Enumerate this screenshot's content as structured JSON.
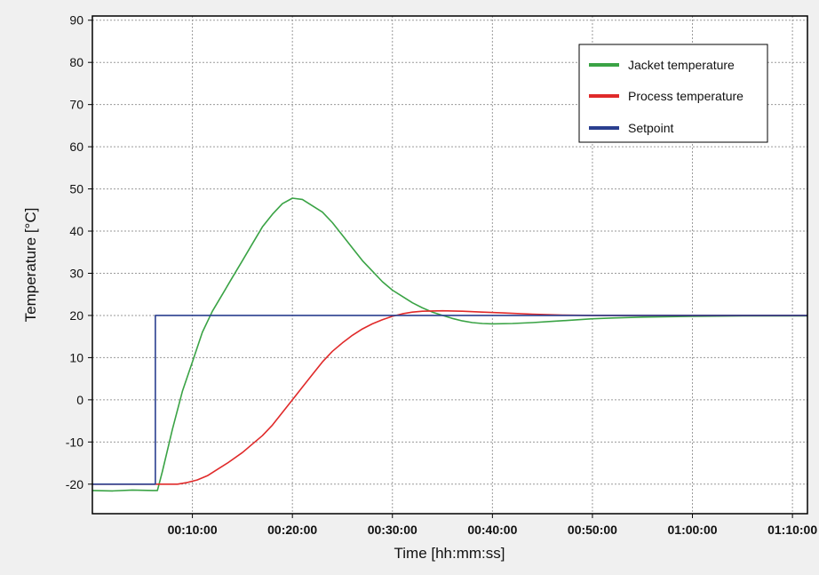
{
  "chart_data": {
    "type": "line",
    "title": "",
    "xlabel": "Time [hh:mm:ss]",
    "ylabel": "Temperature [°C]",
    "xlim_minutes": [
      0,
      71.5
    ],
    "ylim": [
      -27,
      91
    ],
    "x_ticks": [
      {
        "minutes": 10,
        "label": "00:10:00"
      },
      {
        "minutes": 20,
        "label": "00:20:00"
      },
      {
        "minutes": 30,
        "label": "00:30:00"
      },
      {
        "minutes": 40,
        "label": "00:40:00"
      },
      {
        "minutes": 50,
        "label": "00:50:00"
      },
      {
        "minutes": 60,
        "label": "01:00:00"
      },
      {
        "minutes": 70,
        "label": "01:10:00"
      }
    ],
    "y_ticks": [
      -20,
      -10,
      0,
      10,
      20,
      30,
      40,
      50,
      60,
      70,
      80,
      90
    ],
    "grid": true,
    "legend_position": "top-right",
    "series": [
      {
        "name": "Jacket temperature",
        "color": "#3aa345",
        "points": [
          [
            0,
            -21.5
          ],
          [
            2,
            -21.6
          ],
          [
            4,
            -21.4
          ],
          [
            6,
            -21.5
          ],
          [
            6.5,
            -21.5
          ],
          [
            7,
            -17
          ],
          [
            8,
            -7
          ],
          [
            9,
            2
          ],
          [
            10,
            9
          ],
          [
            11,
            16
          ],
          [
            12,
            21
          ],
          [
            13,
            25
          ],
          [
            14,
            29
          ],
          [
            15,
            33
          ],
          [
            16,
            37
          ],
          [
            17,
            41
          ],
          [
            18,
            44
          ],
          [
            19,
            46.5
          ],
          [
            20,
            47.8
          ],
          [
            21,
            47.5
          ],
          [
            22,
            46
          ],
          [
            23,
            44.5
          ],
          [
            24,
            42
          ],
          [
            25,
            39
          ],
          [
            26,
            36
          ],
          [
            27,
            33
          ],
          [
            28,
            30.5
          ],
          [
            29,
            28
          ],
          [
            30,
            26
          ],
          [
            31,
            24.5
          ],
          [
            32,
            23
          ],
          [
            33,
            21.8
          ],
          [
            34,
            20.8
          ],
          [
            35,
            20
          ],
          [
            36,
            19.3
          ],
          [
            37,
            18.7
          ],
          [
            38,
            18.3
          ],
          [
            39,
            18.1
          ],
          [
            40,
            18
          ],
          [
            42,
            18.1
          ],
          [
            44,
            18.3
          ],
          [
            46,
            18.6
          ],
          [
            48,
            18.9
          ],
          [
            50,
            19.2
          ],
          [
            52,
            19.4
          ],
          [
            55,
            19.6
          ],
          [
            60,
            19.8
          ],
          [
            65,
            19.9
          ],
          [
            71.5,
            19.9
          ]
        ]
      },
      {
        "name": "Process temperature",
        "color": "#e02a2a",
        "points": [
          [
            0,
            -20
          ],
          [
            4,
            -20
          ],
          [
            7,
            -20
          ],
          [
            8.5,
            -20
          ],
          [
            9.5,
            -19.6
          ],
          [
            10.5,
            -19
          ],
          [
            11.5,
            -18
          ],
          [
            12.5,
            -16.5
          ],
          [
            13.5,
            -15
          ],
          [
            15,
            -12.5
          ],
          [
            16,
            -10.5
          ],
          [
            17,
            -8.5
          ],
          [
            18,
            -6
          ],
          [
            19,
            -3
          ],
          [
            20,
            0
          ],
          [
            21,
            3
          ],
          [
            22,
            6
          ],
          [
            23,
            9
          ],
          [
            24,
            11.5
          ],
          [
            25,
            13.5
          ],
          [
            26,
            15.3
          ],
          [
            27,
            16.8
          ],
          [
            28,
            18
          ],
          [
            29,
            19
          ],
          [
            30,
            19.8
          ],
          [
            31,
            20.4
          ],
          [
            32,
            20.8
          ],
          [
            33,
            21
          ],
          [
            35,
            21.1
          ],
          [
            37,
            21
          ],
          [
            39,
            20.8
          ],
          [
            41,
            20.6
          ],
          [
            44,
            20.3
          ],
          [
            47,
            20.1
          ],
          [
            50,
            20
          ],
          [
            55,
            20
          ],
          [
            60,
            20
          ],
          [
            71.5,
            20
          ]
        ]
      },
      {
        "name": "Setpoint",
        "color": "#2a3f8f",
        "points": [
          [
            0,
            -20
          ],
          [
            6.3,
            -20
          ],
          [
            6.3,
            20
          ],
          [
            71.5,
            20
          ]
        ]
      }
    ]
  }
}
